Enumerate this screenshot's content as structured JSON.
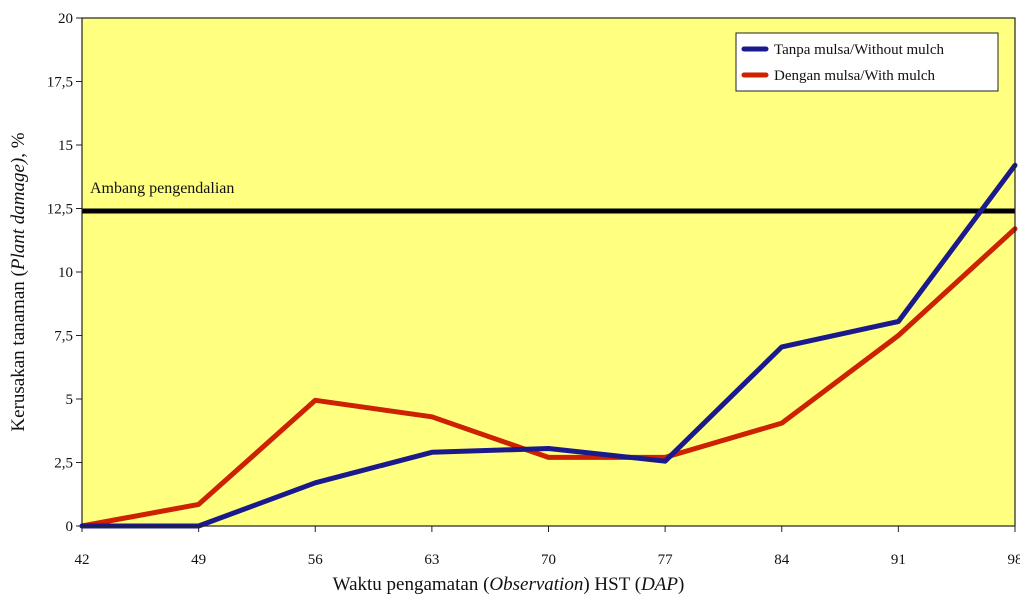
{
  "chart_data": {
    "type": "line",
    "x": [
      42,
      49,
      56,
      63,
      70,
      77,
      84,
      91,
      98
    ],
    "x_tick_labels": [
      "42",
      "49",
      "56",
      "63",
      "70",
      "77",
      "84",
      "91",
      "98"
    ],
    "y_tick_labels": [
      "0",
      "2,5",
      "5",
      "7,5",
      "10",
      "12,5",
      "15",
      "17,5",
      "20"
    ],
    "ylim": [
      0,
      20
    ],
    "xlim": [
      42,
      98
    ],
    "series": [
      {
        "name": "Tanpa mulsa/Without mulch",
        "color": "#1a1a8c",
        "values": [
          0,
          0,
          1.7,
          2.9,
          3.05,
          2.55,
          7.05,
          8.05,
          14.2
        ]
      },
      {
        "name": "Dengan mulsa/With mulch",
        "color": "#cc2200",
        "values": [
          0,
          0.85,
          4.95,
          4.3,
          2.7,
          2.7,
          4.05,
          7.5,
          11.7
        ]
      }
    ],
    "threshold": {
      "label": "Ambang pengendalian",
      "value": 12.4,
      "color": "#000000"
    },
    "xlabel": {
      "part1": "Waktu pengamatan (",
      "part2_italic": "Observation",
      "part3": ") HST (",
      "part4_italic": "DAP",
      "part5": ")"
    },
    "ylabel": {
      "part1": "Kerusakan tanaman (",
      "part2_italic": "Plant damage)",
      "part3": ", %"
    },
    "plot_background": "#ffff80",
    "legend_position": "top-right",
    "grid": false
  }
}
